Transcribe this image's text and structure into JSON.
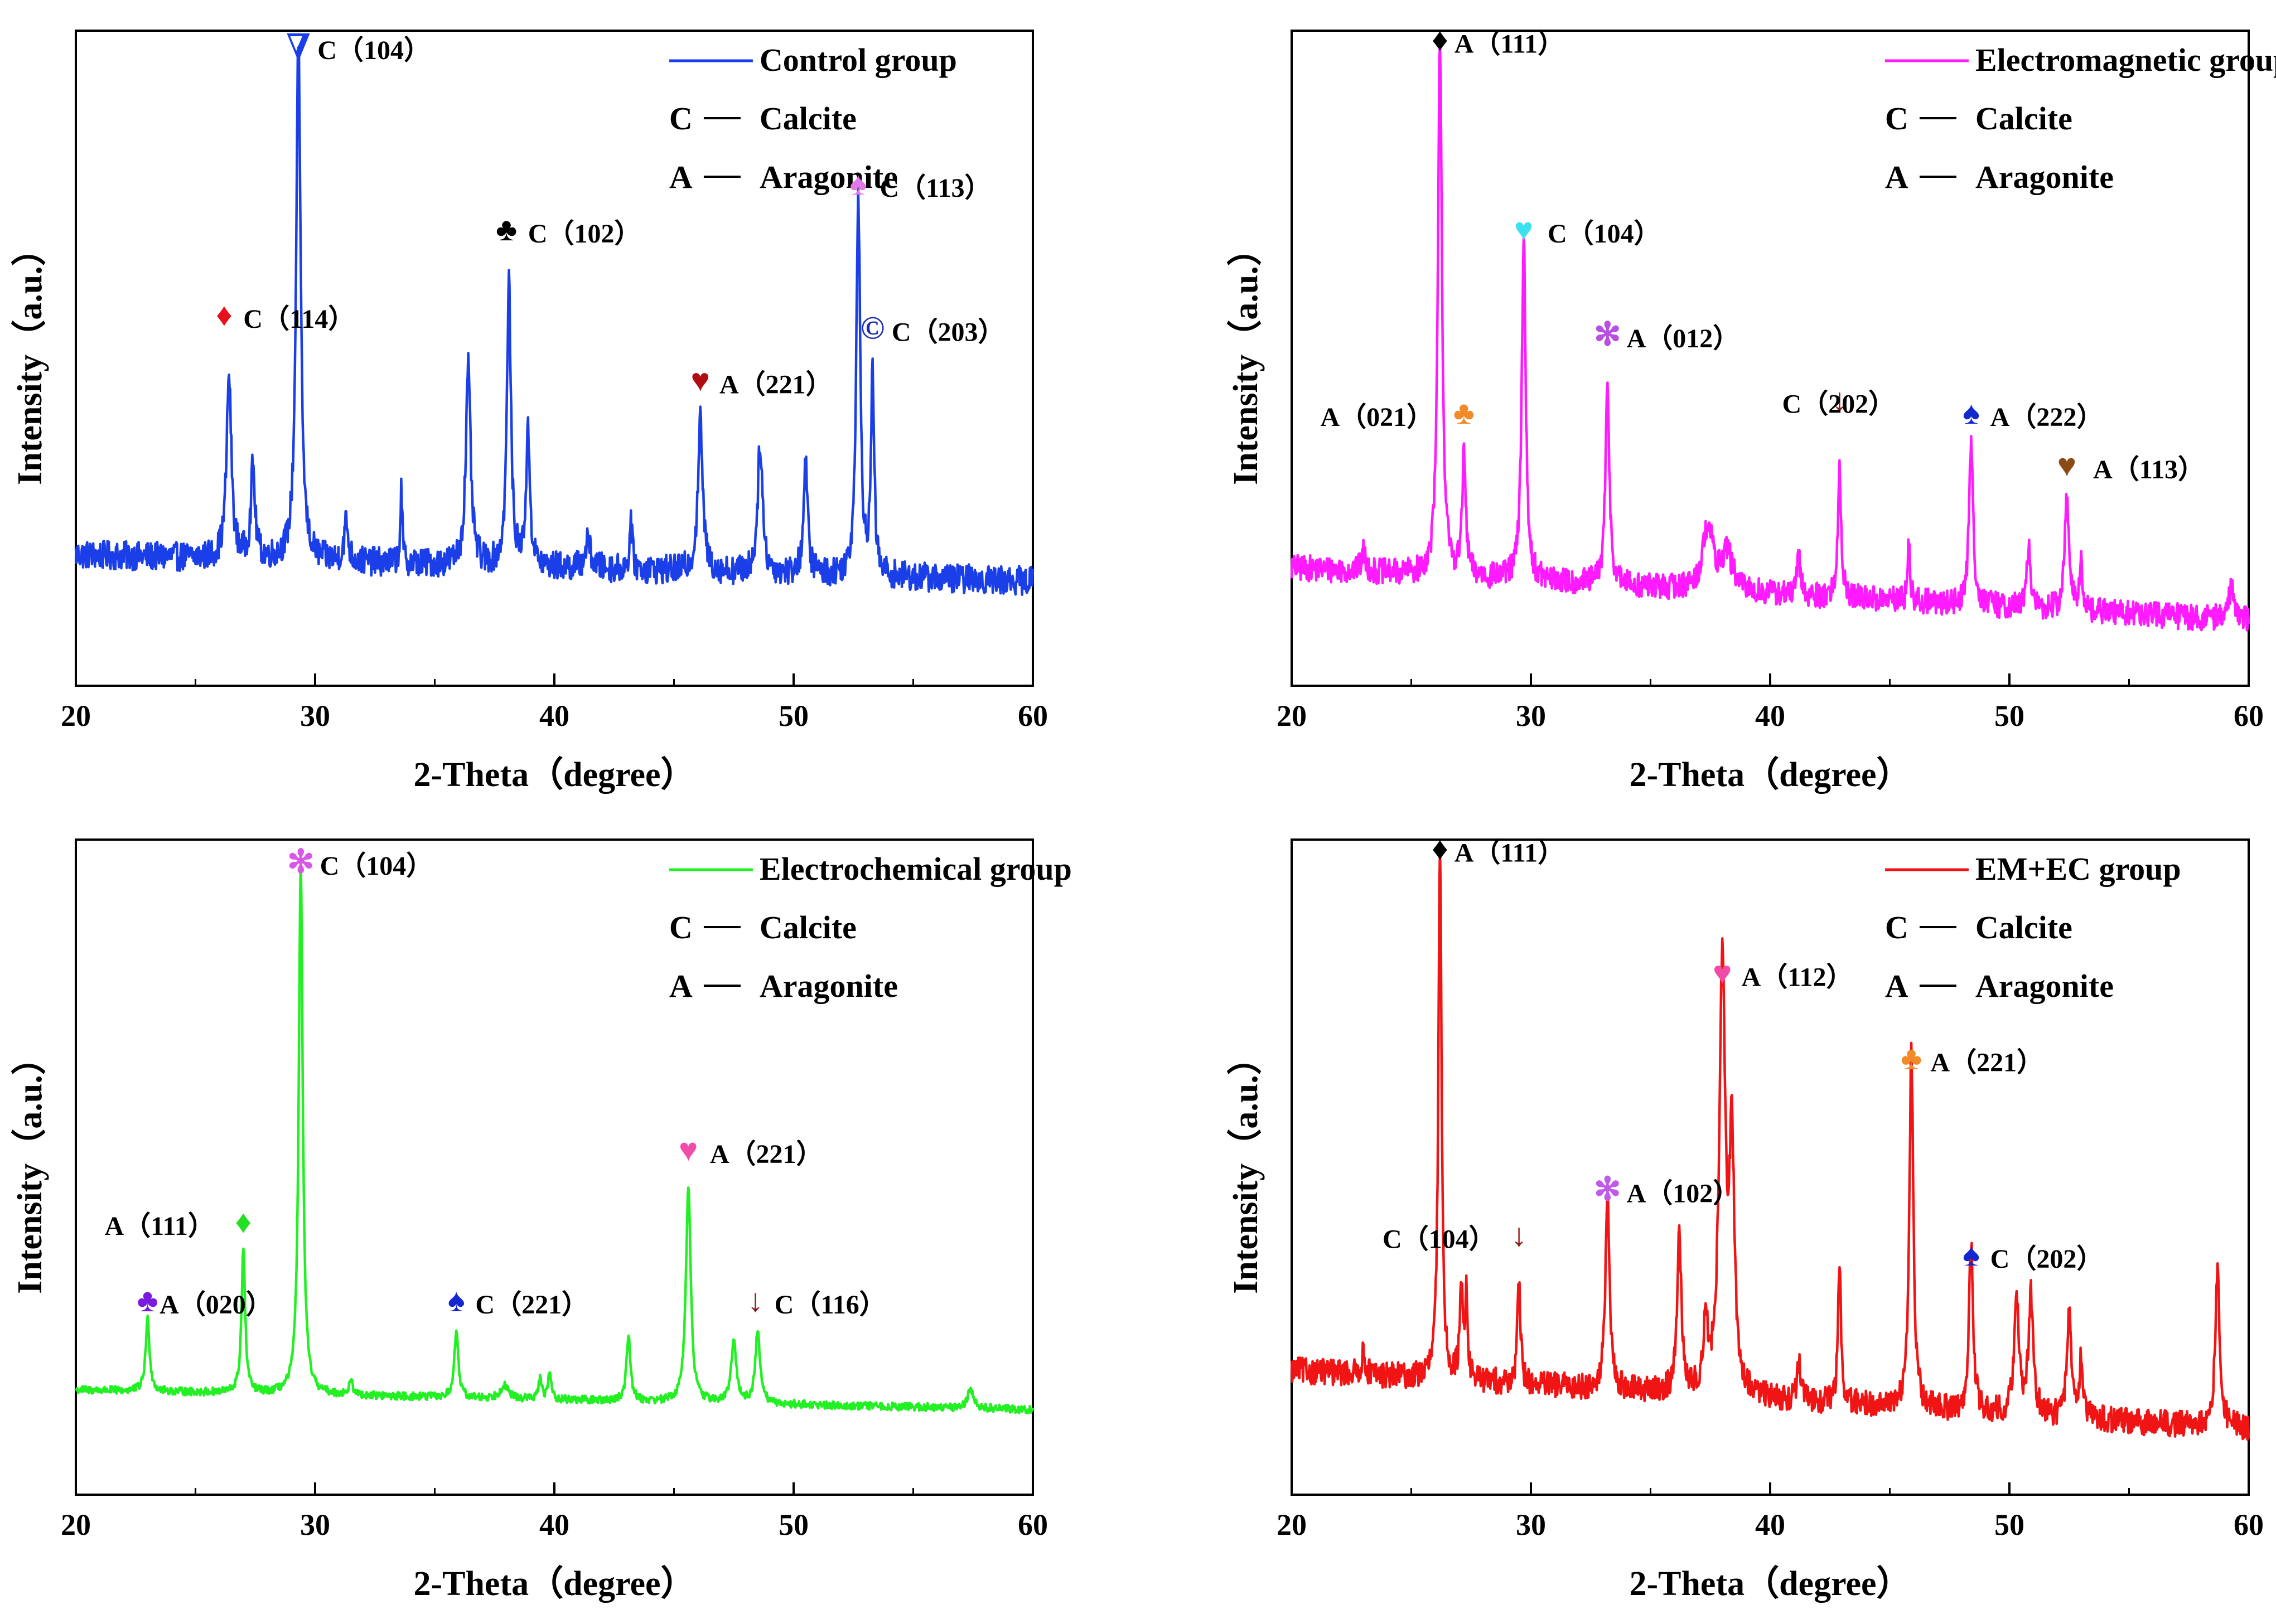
{
  "figure": {
    "description_label": "XRD patterns"
  },
  "chart_data": [
    {
      "type": "line",
      "series_name": "Control group",
      "color": "#1a3fe8",
      "xlabel": "2-Theta（degree）",
      "ylabel": "Intensity（a.u.）",
      "xlim": [
        20,
        60
      ],
      "ylim": [
        0,
        100
      ],
      "xticks": [
        "20",
        "30",
        "40",
        "50",
        "60"
      ],
      "legend": {
        "line_label": "Control group",
        "key1": "C",
        "val1": "Calcite",
        "key2": "A",
        "val2": "Aragonite"
      },
      "baseline": {
        "start": 20,
        "end": 16
      },
      "peaks": [
        {
          "x": 26.4,
          "h": 28,
          "w": 0.12
        },
        {
          "x": 27.4,
          "h": 14,
          "w": 0.1
        },
        {
          "x": 29.3,
          "h": 80,
          "w": 0.11
        },
        {
          "x": 31.3,
          "h": 6,
          "w": 0.1
        },
        {
          "x": 33.6,
          "h": 11,
          "w": 0.05
        },
        {
          "x": 36.4,
          "h": 30,
          "w": 0.12
        },
        {
          "x": 38.1,
          "h": 43,
          "w": 0.1
        },
        {
          "x": 38.9,
          "h": 20,
          "w": 0.1
        },
        {
          "x": 41.4,
          "h": 4,
          "w": 0.15
        },
        {
          "x": 43.2,
          "h": 7,
          "w": 0.07
        },
        {
          "x": 46.1,
          "h": 23,
          "w": 0.12
        },
        {
          "x": 48.6,
          "h": 20,
          "w": 0.12
        },
        {
          "x": 50.5,
          "h": 17,
          "w": 0.1
        },
        {
          "x": 52.7,
          "h": 58,
          "w": 0.1
        },
        {
          "x": 53.3,
          "h": 30,
          "w": 0.08
        }
      ],
      "noise": 2.2,
      "annotations": [
        {
          "x": 29.3,
          "y": 96,
          "symbol": "∇",
          "symbol_color": "#1a3fe8",
          "label": "C（104）",
          "label_x": 30.1
        },
        {
          "x": 26.2,
          "y": 55,
          "symbol": "♦",
          "symbol_color": "#e8101a",
          "label": "C（114）",
          "label_x": 27.0
        },
        {
          "x": 38.0,
          "y": 68,
          "symbol": "♣",
          "symbol_color": "#000000",
          "label": "C（102）",
          "label_x": 38.9
        },
        {
          "x": 46.1,
          "y": 45,
          "symbol": "♥",
          "symbol_color": "#b00d12",
          "label": "A（221）",
          "label_x": 46.9
        },
        {
          "x": 52.7,
          "y": 75,
          "symbol": "♠",
          "symbol_color": "#e07ae8",
          "label": "C（113）",
          "label_x": 53.6
        },
        {
          "x": 53.3,
          "y": 53,
          "symbol": "©",
          "symbol_color": "#1a2bb0",
          "label": "C（203）",
          "label_x": 54.1
        }
      ]
    },
    {
      "type": "line",
      "series_name": "Electromagnetic group",
      "color": "#ff1aff",
      "xlabel": "2-Theta（degree）",
      "ylabel": "Intensity（a.u.）",
      "xlim": [
        20,
        60
      ],
      "ylim": [
        0,
        100
      ],
      "xticks": [
        "20",
        "30",
        "40",
        "50",
        "60"
      ],
      "legend": {
        "line_label": "Electromagnetic group",
        "key1": "C",
        "val1": "Calcite",
        "key2": "A",
        "val2": "Aragonite"
      },
      "baseline": {
        "start": 18,
        "end": 10
      },
      "peaks": [
        {
          "x": 23.0,
          "h": 3,
          "w": 0.1
        },
        {
          "x": 26.2,
          "h": 82,
          "w": 0.1
        },
        {
          "x": 27.2,
          "h": 18,
          "w": 0.09
        },
        {
          "x": 29.7,
          "h": 52,
          "w": 0.1
        },
        {
          "x": 33.2,
          "h": 30,
          "w": 0.1
        },
        {
          "x": 37.4,
          "h": 10,
          "w": 0.25
        },
        {
          "x": 38.2,
          "h": 6,
          "w": 0.25
        },
        {
          "x": 41.2,
          "h": 6,
          "w": 0.08
        },
        {
          "x": 42.9,
          "h": 20,
          "w": 0.08
        },
        {
          "x": 45.8,
          "h": 9,
          "w": 0.06
        },
        {
          "x": 48.4,
          "h": 25,
          "w": 0.1
        },
        {
          "x": 50.8,
          "h": 10,
          "w": 0.08
        },
        {
          "x": 52.4,
          "h": 18,
          "w": 0.1
        },
        {
          "x": 53.0,
          "h": 7,
          "w": 0.08
        },
        {
          "x": 59.3,
          "h": 5,
          "w": 0.15
        }
      ],
      "noise": 2.0,
      "annotations": [
        {
          "x": 26.2,
          "y": 97,
          "symbol": "♦",
          "symbol_color": "#000000",
          "label": "A（111）",
          "label_x": 26.8
        },
        {
          "x": 29.7,
          "y": 68,
          "symbol": "♥",
          "symbol_color": "#3ee0f0",
          "label": "C（104）",
          "label_x": 30.7
        },
        {
          "x": 33.2,
          "y": 52,
          "symbol": "✻",
          "symbol_color": "#b84fe0",
          "label": "A（012）",
          "label_x": 34.0
        },
        {
          "x": 27.2,
          "y": 40,
          "symbol": "♣",
          "symbol_color": "#f08b2a",
          "label": "A（021）",
          "label_x": 21.2
        },
        {
          "x": 42.9,
          "y": 42,
          "symbol": "↓",
          "symbol_color": "#8b1a1a",
          "label": "C（202）",
          "label_x": 40.5
        },
        {
          "x": 48.4,
          "y": 40,
          "symbol": "♠",
          "symbol_color": "#1428d0",
          "label": "A（222）",
          "label_x": 49.2
        },
        {
          "x": 52.4,
          "y": 32,
          "symbol": "♥",
          "symbol_color": "#8b4a14",
          "label": "A（113）",
          "label_x": 53.5
        }
      ]
    },
    {
      "type": "line",
      "series_name": "Electrochemical group",
      "color": "#22f022",
      "xlabel": "2-Theta（degree）",
      "ylabel": "Intensity（a.u.）",
      "xlim": [
        20,
        60
      ],
      "ylim": [
        0,
        100
      ],
      "xticks": [
        "20",
        "30",
        "40",
        "50",
        "60"
      ],
      "legend": {
        "line_label": "Electrochemical group",
        "key1": "C",
        "val1": "Calcite",
        "key2": "A",
        "val2": "Aragonite"
      },
      "baseline": {
        "start": 16,
        "end": 13
      },
      "peaks": [
        {
          "x": 23.0,
          "h": 11,
          "w": 0.1
        },
        {
          "x": 27.0,
          "h": 22,
          "w": 0.09
        },
        {
          "x": 29.4,
          "h": 81,
          "w": 0.1
        },
        {
          "x": 31.5,
          "h": 2,
          "w": 0.1
        },
        {
          "x": 35.9,
          "h": 10,
          "w": 0.1
        },
        {
          "x": 37.9,
          "h": 2,
          "w": 0.2
        },
        {
          "x": 39.4,
          "h": 3,
          "w": 0.08
        },
        {
          "x": 39.8,
          "h": 4,
          "w": 0.08
        },
        {
          "x": 43.1,
          "h": 10,
          "w": 0.1
        },
        {
          "x": 45.6,
          "h": 33,
          "w": 0.12
        },
        {
          "x": 47.5,
          "h": 10,
          "w": 0.12
        },
        {
          "x": 48.5,
          "h": 11,
          "w": 0.12
        },
        {
          "x": 57.4,
          "h": 3,
          "w": 0.15
        }
      ],
      "noise": 0.6,
      "annotations": [
        {
          "x": 29.4,
          "y": 95,
          "symbol": "✻",
          "symbol_color": "#d857e8",
          "label": "C（104）",
          "label_x": 30.2
        },
        {
          "x": 45.6,
          "y": 51,
          "symbol": "♥",
          "symbol_color": "#f04ca8",
          "label": "A（221）",
          "label_x": 46.5
        },
        {
          "x": 27.0,
          "y": 40,
          "symbol": "♦",
          "symbol_color": "#22e022",
          "label": "A（111）",
          "label_x": 21.2
        },
        {
          "x": 23.0,
          "y": 28,
          "symbol": "♣",
          "symbol_color": "#7a1ae0",
          "label": "A（020）",
          "label_x": 23.5
        },
        {
          "x": 35.9,
          "y": 28,
          "symbol": "♠",
          "symbol_color": "#1428d0",
          "label": "C（221）",
          "label_x": 36.7
        },
        {
          "x": 48.4,
          "y": 28,
          "symbol": "↓",
          "symbol_color": "#8b1a1a",
          "label": "C（116）",
          "label_x": 49.2
        }
      ]
    },
    {
      "type": "line",
      "series_name": "EM+EC group",
      "color": "#f01414",
      "xlabel": "2-Theta（degree）",
      "ylabel": "Intensity（a.u.）",
      "xlim": [
        20,
        60
      ],
      "ylim": [
        0,
        100
      ],
      "xticks": [
        "20",
        "30",
        "40",
        "50",
        "60"
      ],
      "legend": {
        "line_label": "EM+EC group",
        "key1": "C",
        "val1": "Calcite",
        "key2": "A",
        "val2": "Aragonite"
      },
      "baseline": {
        "start": 19,
        "end": 10
      },
      "peaks": [
        {
          "x": 23.0,
          "h": 3,
          "w": 0.1
        },
        {
          "x": 26.2,
          "h": 81,
          "w": 0.08
        },
        {
          "x": 27.1,
          "h": 14,
          "w": 0.08
        },
        {
          "x": 27.3,
          "h": 12,
          "w": 0.06
        },
        {
          "x": 29.5,
          "h": 15,
          "w": 0.08
        },
        {
          "x": 33.2,
          "h": 30,
          "w": 0.1
        },
        {
          "x": 36.2,
          "h": 25,
          "w": 0.1
        },
        {
          "x": 37.3,
          "h": 11,
          "w": 0.1
        },
        {
          "x": 38.0,
          "h": 65,
          "w": 0.15
        },
        {
          "x": 38.4,
          "h": 37,
          "w": 0.12
        },
        {
          "x": 41.2,
          "h": 6,
          "w": 0.08
        },
        {
          "x": 42.9,
          "h": 20,
          "w": 0.08
        },
        {
          "x": 45.9,
          "h": 54,
          "w": 0.1
        },
        {
          "x": 48.4,
          "h": 26,
          "w": 0.1
        },
        {
          "x": 50.3,
          "h": 17,
          "w": 0.12
        },
        {
          "x": 50.9,
          "h": 18,
          "w": 0.12
        },
        {
          "x": 52.5,
          "h": 16,
          "w": 0.1
        },
        {
          "x": 53.0,
          "h": 10,
          "w": 0.08
        },
        {
          "x": 58.7,
          "h": 23,
          "w": 0.12
        }
      ],
      "noise": 2.0,
      "annotations": [
        {
          "x": 26.2,
          "y": 97,
          "symbol": "♦",
          "symbol_color": "#000000",
          "label": "A（111）",
          "label_x": 26.8
        },
        {
          "x": 38.0,
          "y": 78,
          "symbol": "♥",
          "symbol_color": "#f04ca8",
          "label": "A（112）",
          "label_x": 38.8
        },
        {
          "x": 45.9,
          "y": 65,
          "symbol": "♣",
          "symbol_color": "#f08b2a",
          "label": "A（221）",
          "label_x": 46.7
        },
        {
          "x": 33.2,
          "y": 45,
          "symbol": "✻",
          "symbol_color": "#c05ae8",
          "label": "A（102）",
          "label_x": 34.0
        },
        {
          "x": 29.5,
          "y": 38,
          "symbol": "↓",
          "symbol_color": "#8b1a1a",
          "label": "C（104）",
          "label_x": 23.8
        },
        {
          "x": 48.4,
          "y": 35,
          "symbol": "♠",
          "symbol_color": "#1428d0",
          "label": "C（202）",
          "label_x": 49.2
        }
      ]
    }
  ]
}
